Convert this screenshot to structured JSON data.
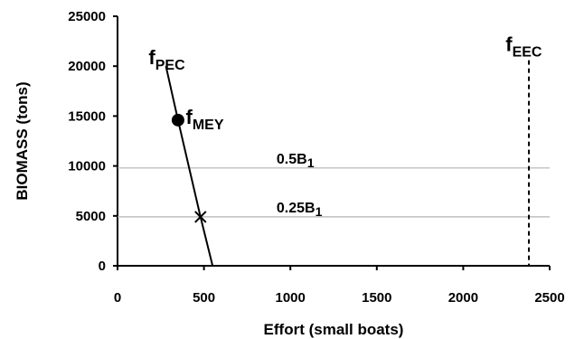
{
  "chart_data": {
    "type": "line",
    "xlabel": "Effort (small boats)",
    "ylabel": "BIOMASS (tons)",
    "xlim": [
      0,
      2500
    ],
    "ylim": [
      0,
      25000
    ],
    "x_ticks": [
      "0",
      "500",
      "1000",
      "1500",
      "2000",
      "2500"
    ],
    "y_ticks": [
      "0",
      "5000",
      "10000",
      "15000",
      "20000",
      "25000"
    ],
    "grid": false,
    "legend": "none",
    "series": [
      {
        "x": [
          280,
          350,
          480,
          550
        ],
        "y": [
          20000,
          14600,
          4900,
          0
        ],
        "color": "#000000"
      }
    ],
    "reference_lines": [
      {
        "orientation": "horizontal",
        "value": 9800,
        "label_main": "0.5B",
        "label_sub": "1",
        "label_x": 920,
        "style": "solid",
        "color": "#b3b3b3"
      },
      {
        "orientation": "horizontal",
        "value": 4900,
        "label_main": "0.25B",
        "label_sub": "1",
        "label_x": 920,
        "style": "solid",
        "color": "#b3b3b3"
      },
      {
        "orientation": "vertical",
        "value": 2380,
        "style": "dashed",
        "color": "#000000"
      }
    ],
    "annotations": [
      {
        "id": "fpec",
        "main": "f",
        "sub": "PEC",
        "x": 180,
        "y": 20200
      },
      {
        "id": "fmey",
        "main": "f",
        "sub": "MEY",
        "x": 395,
        "y": 14200
      },
      {
        "id": "feec",
        "main": "f",
        "sub": "EEC",
        "x": 2245,
        "y": 21500
      }
    ],
    "markers": [
      {
        "id": "mey",
        "symbol": "circle",
        "x": 350,
        "y": 14600
      },
      {
        "id": "b025",
        "symbol": "x",
        "x": 480,
        "y": 4900
      }
    ]
  }
}
